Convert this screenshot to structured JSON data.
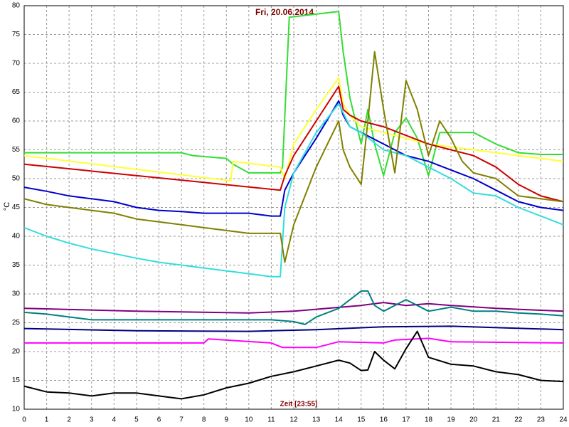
{
  "chart_data": {
    "type": "line",
    "title": "Fri, 20.06.2014",
    "xlabel": "Zeit [23:55]",
    "ylabel": "°C",
    "xlim": [
      0,
      24
    ],
    "xticks": [
      0,
      1,
      2,
      3,
      4,
      5,
      6,
      7,
      8,
      9,
      10,
      11,
      12,
      13,
      14,
      15,
      16,
      17,
      18,
      19,
      20,
      21,
      22,
      23,
      24
    ],
    "ylim": [
      10,
      80
    ],
    "yticks": [
      10,
      15,
      20,
      25,
      30,
      35,
      40,
      45,
      50,
      55,
      60,
      65,
      70,
      75,
      80
    ],
    "grid": true,
    "series": [
      {
        "color": "#33dd33",
        "x": [
          0,
          7,
          7.5,
          9,
          9.3,
          10,
          11.4,
          11.5,
          11.8,
          14,
          14.2,
          14.5,
          15,
          15.3,
          15.6,
          16,
          16.5,
          17,
          17.5,
          18,
          18.5,
          19,
          20,
          21,
          22,
          23,
          24
        ],
        "values": [
          54.5,
          54.5,
          54,
          53.5,
          52.5,
          51,
          51,
          52,
          78,
          79,
          72,
          64,
          56,
          62,
          56,
          50.5,
          58,
          60.5,
          57,
          50.5,
          58,
          58,
          58,
          56,
          54.5,
          54.2,
          54.2
        ]
      },
      {
        "color": "#ffff33",
        "x": [
          0,
          9.2,
          9.3,
          11.4,
          11.6,
          12,
          13,
          14,
          14.2,
          14.5,
          15,
          17,
          18,
          19,
          20,
          21,
          22,
          23,
          24
        ],
        "values": [
          54,
          49.6,
          53,
          52,
          50,
          56,
          62,
          67.5,
          63,
          61,
          59,
          57,
          56,
          55.5,
          55,
          54.5,
          54,
          53.5,
          53
        ]
      },
      {
        "color": "#cc0000",
        "x": [
          0,
          11.4,
          11.6,
          12,
          13,
          14,
          14.2,
          14.5,
          15,
          16,
          17,
          18,
          19,
          20,
          21,
          22,
          23,
          24
        ],
        "values": [
          52.5,
          48,
          50.5,
          54,
          60,
          66,
          62,
          61,
          60,
          59,
          57.5,
          56,
          55,
          54,
          52,
          49,
          47,
          46
        ]
      },
      {
        "color": "#0000cc",
        "x": [
          0,
          1,
          2,
          3,
          4,
          5,
          6,
          7,
          8,
          9,
          10,
          11,
          11.4,
          11.6,
          12,
          13,
          14,
          14.2,
          14.5,
          15,
          16,
          17,
          18,
          19,
          20,
          21,
          22,
          23,
          24
        ],
        "values": [
          48.5,
          47.8,
          47,
          46.5,
          46,
          45,
          44.5,
          44.3,
          44,
          44,
          44,
          43.5,
          43.5,
          48,
          51,
          57,
          63.5,
          61,
          59,
          58,
          56,
          54,
          53,
          51.5,
          50,
          48,
          46,
          45,
          44.5
        ]
      },
      {
        "color": "#33dddd",
        "x": [
          0,
          1,
          2,
          3,
          4,
          5,
          6,
          7,
          8,
          9,
          10,
          11,
          11.4,
          11.6,
          12,
          13,
          14,
          14.5,
          15,
          16,
          17,
          18,
          19,
          20,
          21,
          22,
          23,
          24
        ],
        "values": [
          41.5,
          40,
          38.8,
          37.8,
          37,
          36.2,
          35.5,
          35,
          34.5,
          34,
          33.5,
          33,
          33,
          45,
          51,
          58,
          63,
          59,
          58,
          55,
          54,
          52,
          50,
          47.5,
          47,
          45,
          43.5,
          42
        ]
      },
      {
        "color": "#808000",
        "x": [
          0,
          1,
          2,
          3,
          4,
          5,
          6,
          7,
          8,
          9,
          10,
          11,
          11.4,
          11.6,
          12,
          13,
          14,
          14.2,
          14.5,
          15,
          15.3,
          15.6,
          16,
          16.5,
          17,
          17.5,
          18,
          18.5,
          19,
          19.5,
          20,
          21,
          22,
          23,
          24
        ],
        "values": [
          46.5,
          45.5,
          45,
          44.5,
          44,
          43,
          42.5,
          42,
          41.5,
          41,
          40.5,
          40.5,
          40.5,
          35.5,
          42,
          52,
          60,
          55,
          52,
          49,
          60,
          72,
          62,
          51,
          67,
          62,
          54,
          60,
          57,
          53,
          51,
          50,
          47,
          46.5,
          46
        ]
      },
      {
        "color": "#800080",
        "x": [
          0,
          5,
          10,
          12,
          13.5,
          15,
          16,
          17,
          18,
          19,
          21,
          24
        ],
        "values": [
          27.5,
          27,
          26.7,
          27,
          27.5,
          28,
          28.5,
          28,
          28.3,
          28,
          27.5,
          27
        ]
      },
      {
        "color": "#008080",
        "x": [
          0,
          1,
          2,
          3,
          11,
          12,
          12.5,
          13,
          14,
          15,
          15.3,
          15.6,
          16,
          17,
          17.5,
          18,
          19,
          20,
          21,
          22,
          23,
          24
        ],
        "values": [
          26.8,
          26.5,
          26,
          25.5,
          25.5,
          25.2,
          24.7,
          26,
          27.5,
          30.5,
          30.5,
          28,
          27,
          29,
          28,
          27,
          27.7,
          27,
          27,
          26.7,
          26.5,
          26.2
        ]
      },
      {
        "color": "#000080",
        "x": [
          0,
          5,
          10,
          13,
          16,
          19,
          24
        ],
        "values": [
          24,
          23.6,
          23.5,
          23.8,
          24.3,
          24.4,
          23.8
        ]
      },
      {
        "color": "#ff00ff",
        "x": [
          0,
          8,
          8.2,
          11,
          11.5,
          13,
          14,
          16,
          16.5,
          18,
          19,
          24
        ],
        "values": [
          21.5,
          21.5,
          22.2,
          21.5,
          20.7,
          20.7,
          21.7,
          21.5,
          22,
          22.3,
          21.7,
          21.5
        ]
      },
      {
        "color": "#000000",
        "x": [
          0,
          1,
          2,
          3,
          4,
          5,
          6,
          7,
          8,
          9,
          10,
          11,
          12,
          13,
          14,
          14.5,
          15,
          15.3,
          15.6,
          16,
          16.5,
          17,
          17.5,
          18,
          19,
          20,
          21,
          22,
          23,
          24
        ],
        "values": [
          14,
          13,
          12.8,
          12.3,
          12.8,
          12.8,
          12.3,
          11.8,
          12.5,
          13.7,
          14.5,
          15.7,
          16.5,
          17.5,
          18.5,
          18,
          16.7,
          16.8,
          20,
          18.5,
          17,
          20.5,
          23.5,
          19,
          17.8,
          17.5,
          16.5,
          16,
          15,
          14.8
        ]
      }
    ]
  }
}
